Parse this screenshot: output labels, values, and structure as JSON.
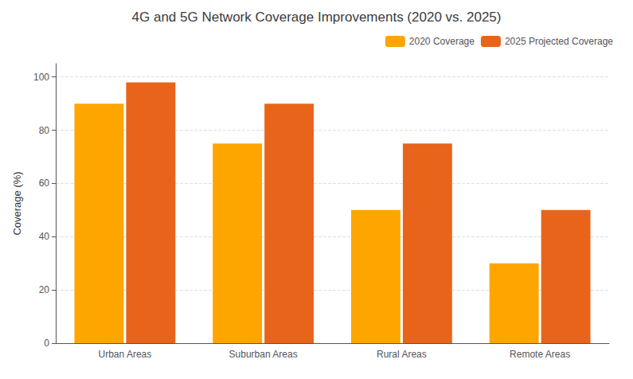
{
  "chart_data": {
    "type": "bar",
    "title": "4G and 5G Network Coverage Improvements (2020 vs. 2025)",
    "categories": [
      "Urban Areas",
      "Suburban Areas",
      "Rural Areas",
      "Remote Areas"
    ],
    "series": [
      {
        "name": "2020 Coverage",
        "color": "#FFA500",
        "values": [
          90,
          75,
          50,
          30
        ]
      },
      {
        "name": "2025 Projected Coverage",
        "color": "#E8641A",
        "values": [
          98,
          90,
          75,
          50
        ]
      }
    ],
    "ylabel": "Coverage (%)",
    "ylim": [
      0,
      105
    ],
    "yticks": [
      0,
      20,
      40,
      60,
      80,
      100
    ],
    "grid": true,
    "legend": "upper right"
  }
}
